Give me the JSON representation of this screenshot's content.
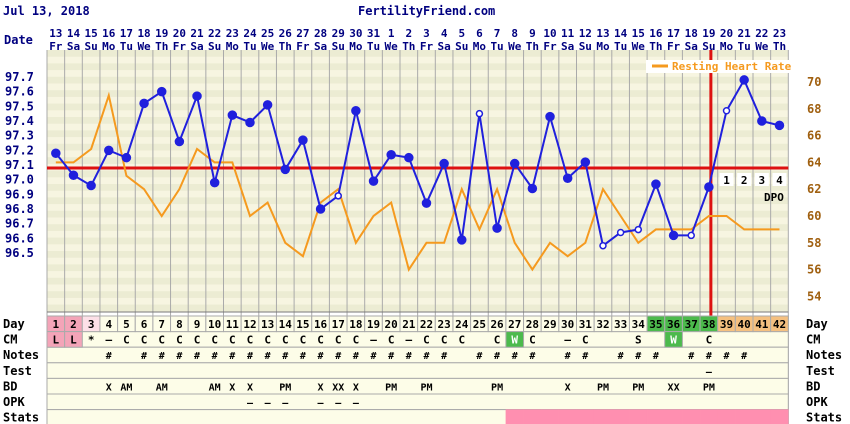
{
  "header": {
    "date": "Jul 13, 2018",
    "site": "FertilityFriend.com"
  },
  "chart_data": {
    "type": "line",
    "title": "",
    "row_labels": {
      "date": "Date",
      "day": "Day",
      "cm": "CM",
      "notes": "Notes",
      "test": "Test",
      "bd": "BD",
      "opk": "OPK",
      "stats": "Stats"
    },
    "dates": [
      "13",
      "14",
      "15",
      "16",
      "17",
      "18",
      "19",
      "20",
      "21",
      "22",
      "23",
      "24",
      "25",
      "26",
      "27",
      "28",
      "29",
      "30",
      "31",
      "1",
      "2",
      "3",
      "4",
      "5",
      "6",
      "7",
      "8",
      "9",
      "10",
      "11",
      "12",
      "13",
      "14",
      "15",
      "16",
      "17",
      "18",
      "19",
      "20",
      "21",
      "22",
      "23"
    ],
    "weekdays": [
      "Fr",
      "Sa",
      "Su",
      "Mo",
      "Tu",
      "We",
      "Th",
      "Fr",
      "Sa",
      "Su",
      "Mo",
      "Tu",
      "We",
      "Th",
      "Fr",
      "Sa",
      "Su",
      "Mo",
      "Tu",
      "We",
      "Th",
      "Fr",
      "Sa",
      "Su",
      "Mo",
      "Tu",
      "We",
      "Th",
      "Fr",
      "Sa",
      "Su",
      "Mo",
      "Tu",
      "We",
      "Th",
      "Fr",
      "Sa",
      "Su",
      "Mo",
      "Tu",
      "We",
      "Th"
    ],
    "cycle_days": [
      1,
      2,
      3,
      4,
      5,
      6,
      7,
      8,
      9,
      10,
      11,
      12,
      13,
      14,
      15,
      16,
      17,
      18,
      19,
      20,
      21,
      22,
      23,
      24,
      25,
      26,
      27,
      28,
      29,
      30,
      31,
      32,
      33,
      34,
      35,
      36,
      37,
      38,
      39,
      40,
      41,
      42
    ],
    "ylim_temp": [
      96.4,
      97.8
    ],
    "temp_ticks": [
      "97.7",
      "97.6",
      "97.5",
      "97.4",
      "97.3",
      "97.2",
      "97.1",
      "97.0",
      "96.9",
      "96.8",
      "96.7",
      "96.6",
      "96.5"
    ],
    "ylim_hr": [
      52,
      72
    ],
    "hr_ticks": [
      "70",
      "68",
      "66",
      "64",
      "62",
      "60",
      "58",
      "56",
      "54"
    ],
    "coverline": 97.08,
    "ovulation_day": 38,
    "dpo_labels": [
      "1",
      "2",
      "3",
      "4"
    ],
    "dpo_text": "DPO",
    "series": [
      {
        "name": "",
        "color": "#2020dd",
        "values": [
          97.18,
          97.03,
          96.96,
          97.2,
          97.15,
          97.52,
          97.6,
          97.26,
          97.57,
          96.98,
          97.44,
          97.39,
          97.51,
          97.07,
          97.27,
          96.8,
          96.89,
          97.47,
          96.99,
          97.17,
          97.15,
          96.84,
          97.11,
          96.59,
          97.45,
          96.67,
          97.11,
          96.94,
          97.43,
          97.01,
          97.12,
          96.55,
          96.64,
          96.66,
          96.97,
          96.62,
          96.62,
          96.95,
          97.47,
          97.68,
          97.4,
          97.37
        ],
        "open_markers": [
          17,
          25,
          32,
          33,
          34,
          37,
          39
        ]
      },
      {
        "name": "Resting Heart Rate",
        "color": "#f59a1f",
        "values": [
          64,
          64,
          65,
          69,
          63,
          62,
          60,
          62,
          65,
          64,
          64,
          60,
          61,
          58,
          57,
          61,
          62,
          58,
          60,
          61,
          56,
          58,
          58,
          62,
          59,
          62,
          58,
          56,
          58,
          57,
          58,
          62,
          60,
          58,
          59,
          59,
          59,
          60,
          60,
          59,
          59,
          59
        ]
      }
    ],
    "cm_row": [
      "L",
      "L",
      "*",
      "—",
      "C",
      "C",
      "C",
      "C",
      "C",
      "C",
      "C",
      "C",
      "C",
      "C",
      "C",
      "C",
      "C",
      "C",
      "—",
      "C",
      "—",
      "C",
      "C",
      "C",
      "",
      "C",
      "W",
      "C",
      "",
      "—",
      "C",
      "",
      "",
      "S",
      "",
      "W",
      "",
      "C",
      "",
      "",
      "",
      ""
    ],
    "notes_row": [
      "",
      "",
      "",
      "#",
      "",
      "#",
      "#",
      "#",
      "#",
      "#",
      "#",
      "#",
      "#",
      "#",
      "#",
      "#",
      "#",
      "#",
      "#",
      "#",
      "#",
      "#",
      "#",
      "",
      "#",
      "#",
      "#",
      "#",
      "",
      "#",
      "#",
      "",
      "#",
      "#",
      "#",
      "",
      "#",
      "#",
      "#",
      "#",
      "",
      ""
    ],
    "test_row": [
      "",
      "",
      "",
      "",
      "",
      "",
      "",
      "",
      "",
      "",
      "",
      "",
      "",
      "",
      "",
      "",
      "",
      "",
      "",
      "",
      "",
      "",
      "",
      "",
      "",
      "",
      "",
      "",
      "",
      "",
      "",
      "",
      "",
      "",
      "",
      "",
      "",
      "—",
      "",
      "",
      "",
      ""
    ],
    "bd_row": [
      "",
      "",
      "",
      "X",
      "AM",
      "",
      "AM",
      "",
      "",
      "AM",
      "X",
      "X",
      "",
      "PM",
      "",
      "X",
      "XX",
      "X",
      "",
      "PM",
      "",
      "PM",
      "",
      "",
      "",
      "PM",
      "",
      "",
      "",
      "X",
      "",
      "PM",
      "",
      "PM",
      "",
      "XX",
      "",
      "PM",
      "",
      "",
      "",
      ""
    ],
    "opk_row": [
      "",
      "",
      "",
      "",
      "",
      "",
      "",
      "",
      "",
      "",
      "",
      "—",
      "—",
      "—",
      "",
      "—",
      "—",
      "—",
      "",
      "",
      "",
      "",
      "",
      "",
      "",
      "",
      "",
      "",
      "",
      "",
      "",
      "",
      "",
      "",
      "",
      "",
      "",
      "",
      "",
      "",
      "",
      ""
    ],
    "stats_pink_from_day": 27,
    "colors": {
      "grid": "#aaaaaa",
      "temp_line": "#2020dd",
      "hr_line": "#f59a1f",
      "coverline": "#dd1111",
      "ovulation_line": "#dd1111",
      "header_text": "#000080",
      "menstrual_cell": "#f4a4b8",
      "green_cell": "#4cba4c",
      "luteal_cell": "#f5c080",
      "stats_pink": "#ff8fb0",
      "band_light": "#f7f5e1",
      "band_dark": "#ececd3"
    }
  }
}
